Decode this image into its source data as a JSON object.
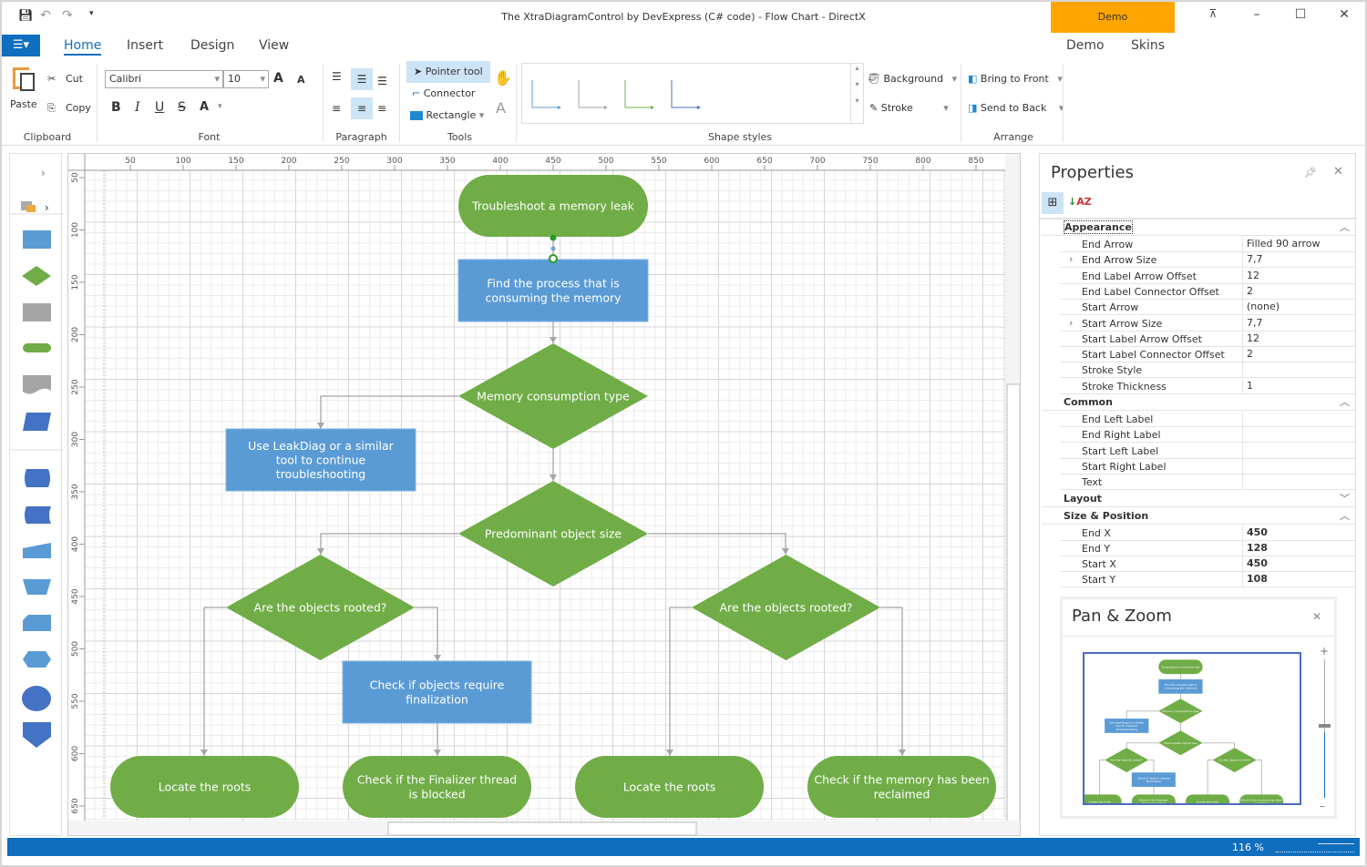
{
  "title": "The XtraDiagramControl by DevExpress (C# code) - Flow Chart - DirectX",
  "demo_badge": "Demo",
  "tabs": [
    "Home",
    "Insert",
    "Design",
    "View"
  ],
  "right_tabs": [
    "Demo",
    "Skins"
  ],
  "clipboard": {
    "paste": "Paste",
    "cut": "Cut",
    "copy": "Copy",
    "label": "Clipboard"
  },
  "font": {
    "family": "Calibri",
    "size": "10",
    "label": "Font",
    "bold": "B",
    "italic": "I",
    "underline": "U",
    "strike": "S",
    "color": "A"
  },
  "paragraph": {
    "label": "Paragraph"
  },
  "tools": {
    "pointer": "Pointer tool",
    "connector": "Connector",
    "rectangle": "Rectangle",
    "label": "Tools"
  },
  "shape_styles": {
    "label": "Shape styles",
    "background": "Background",
    "stroke": "Stroke"
  },
  "arrange": {
    "bring_front": "Bring to Front",
    "send_back": "Send to Back",
    "label": "Arrange"
  },
  "ruler": {
    "h": [
      "50",
      "100",
      "150",
      "200",
      "250",
      "300",
      "350",
      "400",
      "450",
      "500",
      "550",
      "600",
      "650",
      "700",
      "750",
      "800",
      "850"
    ],
    "v": [
      "50",
      "100",
      "150",
      "200",
      "250",
      "300",
      "350",
      "400",
      "450",
      "500",
      "550",
      "600",
      "650"
    ]
  },
  "diagram": {
    "nodes": [
      {
        "text": "Troubleshoot a memory leak",
        "shape": "terminator"
      },
      {
        "text": "Find the process that is consuming the memory",
        "shape": "rect"
      },
      {
        "text": "Memory consumption type",
        "shape": "decision"
      },
      {
        "text": "Use LeakDiag or a similar tool to continue troubleshooting",
        "shape": "rect"
      },
      {
        "text": "Predominant object size",
        "shape": "decision"
      },
      {
        "text": "Are the objects rooted?",
        "shape": "decision"
      },
      {
        "text": "Are the objects rooted?",
        "shape": "decision"
      },
      {
        "text": "Check if objects require finalization",
        "shape": "rect"
      },
      {
        "text": "Locate the roots",
        "shape": "terminator"
      },
      {
        "text": "Check if the Finalizer thread is blocked",
        "shape": "terminator"
      },
      {
        "text": "Locate the roots",
        "shape": "terminator"
      },
      {
        "text": "Check if the memory has been reclaimed",
        "shape": "terminator"
      }
    ],
    "colors": {
      "green": "#70AD47",
      "blue": "#5B9BD5",
      "connector": "#A5A5A5"
    }
  },
  "properties": {
    "title": "Properties",
    "categories": [
      {
        "name": "Appearance",
        "expanded": true,
        "rows": [
          [
            "End Arrow",
            "Filled 90 arrow"
          ],
          [
            "End Arrow Size",
            "7,7"
          ],
          [
            "End Label Arrow Offset",
            "12"
          ],
          [
            "End Label Connector Offset",
            "2"
          ],
          [
            "Start Arrow",
            "(none)"
          ],
          [
            "Start Arrow Size",
            "7,7"
          ],
          [
            "Start Label Arrow Offset",
            "12"
          ],
          [
            "Start Label Connector Offset",
            "2"
          ],
          [
            "Stroke Style",
            ""
          ],
          [
            "Stroke Thickness",
            "1"
          ]
        ]
      },
      {
        "name": "Common",
        "expanded": true,
        "rows": [
          [
            "End Left Label",
            ""
          ],
          [
            "End Right Label",
            ""
          ],
          [
            "Start Left Label",
            ""
          ],
          [
            "Start Right Label",
            ""
          ],
          [
            "Text",
            ""
          ]
        ]
      },
      {
        "name": "Layout",
        "expanded": false,
        "rows": []
      },
      {
        "name": "Size & Position",
        "expanded": true,
        "rows": [
          [
            "End X",
            "450"
          ],
          [
            "End Y",
            "128"
          ],
          [
            "Start X",
            "450"
          ],
          [
            "Start Y",
            "108"
          ]
        ]
      }
    ]
  },
  "pan_zoom": {
    "title": "Pan & Zoom"
  },
  "status": {
    "zoom": "116 %"
  }
}
